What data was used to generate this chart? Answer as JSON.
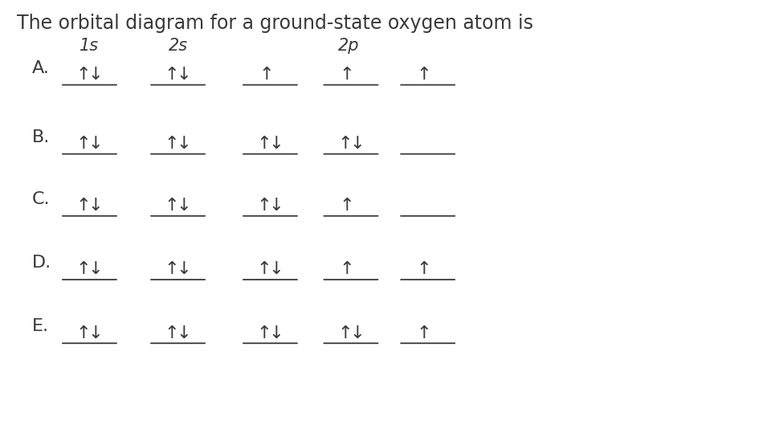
{
  "title": "The orbital diagram for a ground-state oxygen atom is",
  "title_fontsize": 17,
  "bg_color": "#ffffff",
  "text_color": "#3a3a3a",
  "rows": [
    {
      "label": "A.",
      "orbitals_1s": "both",
      "orbitals_2s": "both",
      "orbitals_2p": [
        "up_only",
        "up_only",
        "up_only"
      ]
    },
    {
      "label": "B.",
      "orbitals_1s": "both",
      "orbitals_2s": "both",
      "orbitals_2p": [
        "both",
        "both",
        "none"
      ]
    },
    {
      "label": "C.",
      "orbitals_1s": "both",
      "orbitals_2s": "both",
      "orbitals_2p": [
        "both",
        "up_only",
        "none"
      ]
    },
    {
      "label": "D.",
      "orbitals_1s": "both",
      "orbitals_2s": "both",
      "orbitals_2p": [
        "both",
        "up_only",
        "up_only"
      ]
    },
    {
      "label": "E.",
      "orbitals_1s": "both",
      "orbitals_2s": "both",
      "orbitals_2p": [
        "both",
        "both",
        "up_only"
      ]
    }
  ],
  "label_fontsize": 16,
  "header_fontsize": 15,
  "arrow_fontsize": 20,
  "line_fontsize": 8
}
